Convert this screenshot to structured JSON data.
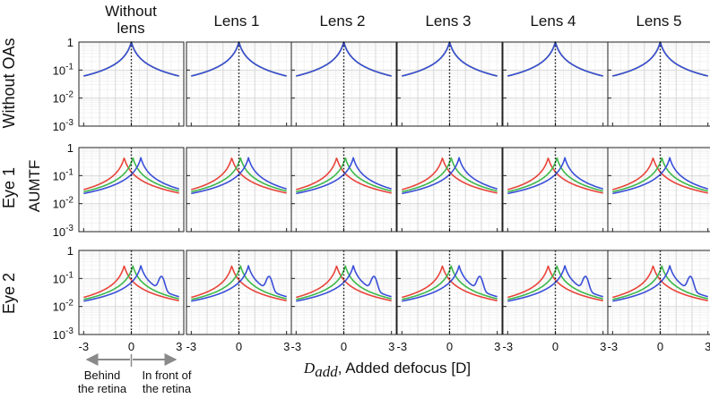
{
  "chart_data": {
    "type": "line",
    "layout": "grid of small multiples",
    "column_titles": [
      [
        "Without",
        "lens"
      ],
      [
        "Lens 1"
      ],
      [
        "Lens 2"
      ],
      [
        "Lens 3"
      ],
      [
        "Lens 4"
      ],
      [
        "Lens 5"
      ]
    ],
    "row_titles": [
      "Without OAs",
      "Eye 1",
      "Eye 2"
    ],
    "ylabel": "AUMTF",
    "xlabel_symbol_main": "D",
    "xlabel_symbol_sub": "add",
    "xlabel_rest": ", Added defocus [D]",
    "yscale": "log",
    "ylim": [
      0.001,
      1
    ],
    "y_ticks": [
      {
        "value": 1,
        "label": "1",
        "exp": ""
      },
      {
        "value": 0.1,
        "label": "10",
        "exp": "-1"
      },
      {
        "value": 0.01,
        "label": "10",
        "exp": "-2"
      },
      {
        "value": 0.001,
        "label": "10",
        "exp": "-3"
      }
    ],
    "xlim": [
      -3.3,
      3.3
    ],
    "x_ticks": [
      -3,
      0,
      3
    ],
    "x_tick_labels": [
      "-3",
      "0",
      "3"
    ],
    "grid": true,
    "reference_line_x": 0,
    "series_colors": {
      "red": "#e8443a",
      "green": "#3cb84a",
      "blue": "#3b4fd8"
    },
    "rows": [
      {
        "name": "Without OAs",
        "series": [
          {
            "name": "red",
            "peak": 0.0,
            "amp": 1.0,
            "floor": 0.0055,
            "wings": []
          },
          {
            "name": "green",
            "peak": 0.0,
            "amp": 1.0,
            "floor": 0.0055,
            "wings": []
          },
          {
            "name": "blue",
            "peak": 0.0,
            "amp": 1.0,
            "floor": 0.0055,
            "wings": []
          }
        ]
      },
      {
        "name": "Eye 1",
        "series": [
          {
            "name": "red",
            "peak": -0.45,
            "amp": 0.45,
            "floor": 0.0055,
            "wings": []
          },
          {
            "name": "green",
            "peak": 0.1,
            "amp": 0.45,
            "floor": 0.0055,
            "wings": []
          },
          {
            "name": "blue",
            "peak": 0.6,
            "amp": 0.45,
            "floor": 0.0055,
            "wings": []
          }
        ]
      },
      {
        "name": "Eye 2",
        "series": [
          {
            "name": "red",
            "peak": -0.45,
            "amp": 0.3,
            "floor": 0.0055,
            "wings": []
          },
          {
            "name": "green",
            "peak": 0.1,
            "amp": 0.3,
            "floor": 0.0055,
            "wings": []
          },
          {
            "name": "blue",
            "peak": 0.6,
            "amp": 0.3,
            "floor": 0.0055,
            "wings": [
              {
                "pos": 1.9,
                "amp": 0.08
              }
            ]
          }
        ]
      }
    ],
    "annotations": {
      "left": [
        "Behind",
        "the retina"
      ],
      "right": [
        "In front of",
        "the retina"
      ]
    }
  }
}
